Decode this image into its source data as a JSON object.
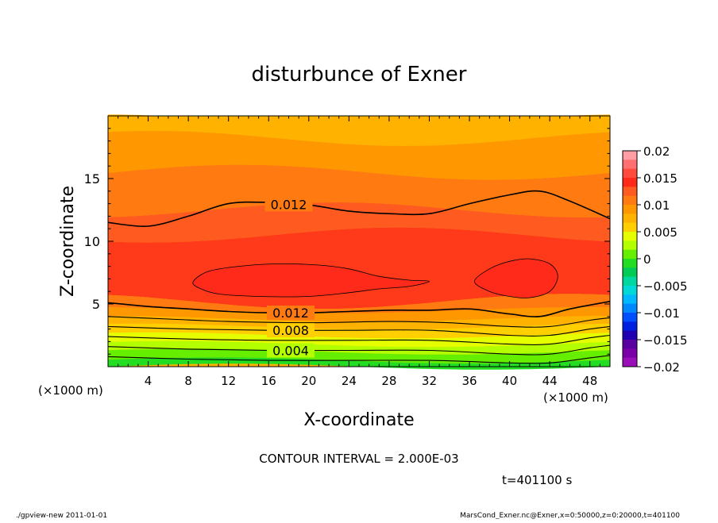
{
  "chart_data": {
    "type": "heatmap",
    "title": "disturbunce of Exner",
    "xlabel": "X-coordinate",
    "ylabel": "Z-coordinate",
    "x_unit": "(×1000 m)",
    "y_unit": "(×1000 m)",
    "xlim": [
      0,
      50
    ],
    "ylim": [
      0,
      20
    ],
    "x_ticks": [
      4,
      8,
      12,
      16,
      20,
      24,
      28,
      32,
      36,
      40,
      44,
      48
    ],
    "y_ticks": [
      5,
      10,
      15
    ],
    "contour_labels": [
      "0.012",
      "0.012",
      "0.008",
      "0.004"
    ],
    "contour_interval_text": "CONTOUR INTERVAL = 2.000E-03",
    "colorbar": {
      "ticks": [
        "0.02",
        "0.015",
        "0.01",
        "0.005",
        "0",
        "−0.005",
        "−0.01",
        "−0.015",
        "−0.02"
      ],
      "colors": [
        "#ff9ea5",
        "#ff6f6f",
        "#ff4a3c",
        "#ff2a1a",
        "#ff5a20",
        "#ff7a10",
        "#ff9800",
        "#ffb300",
        "#ffcf00",
        "#e6ff00",
        "#b3ff00",
        "#66ee00",
        "#22dd22",
        "#00cc55",
        "#00d7a0",
        "#00d8d8",
        "#00b8ff",
        "#0088ff",
        "#0050ff",
        "#0020e0",
        "#2000b0",
        "#5a00a0",
        "#7a00a8",
        "#9a10b8"
      ]
    },
    "field_bands": [
      {
        "z": [
          19.5,
          18.2
        ],
        "color": "#ffb300"
      },
      {
        "z": [
          18.2,
          15.5
        ],
        "color": "#ff9800"
      },
      {
        "z": [
          15.5,
          12.5
        ],
        "color": "#ff7a10"
      },
      {
        "z": [
          12.5,
          10.5
        ],
        "color": "#ff5a20"
      },
      {
        "z": [
          10.5,
          5.2
        ],
        "color": "#ff3a1a"
      },
      {
        "z": [
          5.2,
          4.5
        ],
        "color": "#ff7a10"
      },
      {
        "z": [
          4.5,
          3.8
        ],
        "color": "#ff9800"
      },
      {
        "z": [
          3.8,
          3.2
        ],
        "color": "#ffb300"
      },
      {
        "z": [
          3.2,
          2.5
        ],
        "color": "#ffcf00"
      },
      {
        "z": [
          2.5,
          1.8
        ],
        "color": "#e6ff00"
      },
      {
        "z": [
          1.8,
          1.2
        ],
        "color": "#b3ff00"
      },
      {
        "z": [
          1.2,
          0.5
        ],
        "color": "#66ee00"
      },
      {
        "z": [
          0.5,
          0.0
        ],
        "color": "#22dd22"
      }
    ],
    "contours": [
      {
        "level": "0.012",
        "points": [
          [
            0,
            11.5
          ],
          [
            4,
            11.2
          ],
          [
            8,
            12
          ],
          [
            12,
            13
          ],
          [
            16,
            13.1
          ],
          [
            20,
            12.9
          ],
          [
            24,
            12.4
          ],
          [
            28,
            12.2
          ],
          [
            32,
            12.2
          ],
          [
            36,
            13
          ],
          [
            40,
            13.7
          ],
          [
            43,
            14
          ],
          [
            46,
            13.2
          ],
          [
            50,
            11.8
          ]
        ]
      },
      {
        "level": "0.012",
        "points": [
          [
            0,
            5.1
          ],
          [
            4,
            4.8
          ],
          [
            8,
            4.6
          ],
          [
            12,
            4.4
          ],
          [
            16,
            4.3
          ],
          [
            20,
            4.3
          ],
          [
            24,
            4.4
          ],
          [
            28,
            4.5
          ],
          [
            32,
            4.5
          ],
          [
            36,
            4.6
          ],
          [
            40,
            4.2
          ],
          [
            43,
            4.0
          ],
          [
            46,
            4.6
          ],
          [
            50,
            5.2
          ]
        ]
      },
      {
        "level": "0.010",
        "points": [
          [
            0,
            4.0
          ],
          [
            6,
            3.8
          ],
          [
            12,
            3.6
          ],
          [
            20,
            3.5
          ],
          [
            28,
            3.6
          ],
          [
            34,
            3.5
          ],
          [
            40,
            3.2
          ],
          [
            44,
            3.2
          ],
          [
            48,
            3.7
          ],
          [
            50,
            3.9
          ]
        ]
      },
      {
        "level": "0.008",
        "points": [
          [
            0,
            3.2
          ],
          [
            8,
            3.0
          ],
          [
            16,
            2.9
          ],
          [
            24,
            2.9
          ],
          [
            32,
            2.9
          ],
          [
            40,
            2.5
          ],
          [
            44,
            2.5
          ],
          [
            48,
            3.0
          ],
          [
            50,
            3.2
          ]
        ]
      },
      {
        "level": "0.006",
        "points": [
          [
            0,
            2.4
          ],
          [
            8,
            2.2
          ],
          [
            16,
            2.1
          ],
          [
            24,
            2.1
          ],
          [
            32,
            2.1
          ],
          [
            40,
            1.8
          ],
          [
            44,
            1.8
          ],
          [
            48,
            2.3
          ],
          [
            50,
            2.5
          ]
        ]
      },
      {
        "level": "0.004",
        "points": [
          [
            0,
            1.6
          ],
          [
            8,
            1.4
          ],
          [
            16,
            1.3
          ],
          [
            24,
            1.3
          ],
          [
            32,
            1.3
          ],
          [
            40,
            1.0
          ],
          [
            44,
            1.0
          ],
          [
            48,
            1.5
          ],
          [
            50,
            1.7
          ]
        ]
      },
      {
        "level": "0.002",
        "points": [
          [
            0,
            0.8
          ],
          [
            8,
            0.6
          ],
          [
            16,
            0.5
          ],
          [
            24,
            0.5
          ],
          [
            32,
            0.5
          ],
          [
            40,
            0.3
          ],
          [
            44,
            0.3
          ],
          [
            48,
            0.7
          ],
          [
            50,
            0.9
          ]
        ]
      }
    ],
    "blobs": [
      {
        "color": "#ff2a1a",
        "points": [
          [
            8.5,
            6.8
          ],
          [
            10,
            7.6
          ],
          [
            13,
            8.0
          ],
          [
            17,
            8.2
          ],
          [
            21,
            8.1
          ],
          [
            24,
            7.8
          ],
          [
            27,
            7.2
          ],
          [
            30,
            6.9
          ],
          [
            32,
            6.8
          ],
          [
            30,
            6.4
          ],
          [
            27,
            6.2
          ],
          [
            24,
            5.9
          ],
          [
            20,
            5.6
          ],
          [
            15,
            5.6
          ],
          [
            11,
            5.8
          ],
          [
            9,
            6.3
          ]
        ]
      },
      {
        "color": "#ff2a1a",
        "points": [
          [
            36.5,
            6.8
          ],
          [
            38,
            7.8
          ],
          [
            40,
            8.4
          ],
          [
            42,
            8.6
          ],
          [
            44,
            8.2
          ],
          [
            44.8,
            7.2
          ],
          [
            44,
            6.0
          ],
          [
            42,
            5.5
          ],
          [
            40,
            5.6
          ],
          [
            38,
            6.0
          ]
        ]
      }
    ],
    "t_label": "t=401100 s"
  },
  "footer": {
    "left": "./gpview-new   2011-01-01",
    "right": "MarsCond_Exner.nc@Exner,x=0:50000,z=0:20000,t=401100"
  }
}
